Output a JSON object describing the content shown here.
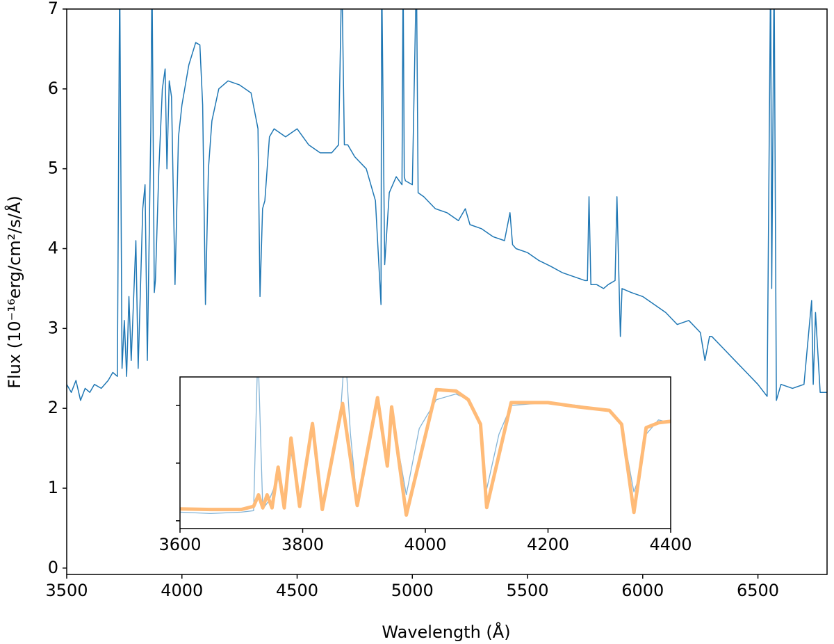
{
  "chart_data": [
    {
      "type": "line",
      "xlabel": "Wavelength (Å)",
      "ylabel": "Flux (10⁻¹⁶erg/cm²/s/Å)",
      "xlim": [
        3500,
        6800
      ],
      "ylim": [
        -0.08,
        7
      ],
      "xticks": [
        3500,
        4000,
        4500,
        5000,
        5500,
        6000,
        6500
      ],
      "yticks": [
        0,
        1,
        2,
        3,
        4,
        5,
        6,
        7
      ],
      "series": [
        {
          "color": "#1f77b4",
          "x": [
            3500,
            3520,
            3540,
            3560,
            3580,
            3600,
            3620,
            3650,
            3680,
            3700,
            3720,
            3730,
            3740,
            3750,
            3760,
            3770,
            3780,
            3800,
            3810,
            3830,
            3840,
            3850,
            3865,
            3870,
            3880,
            3885,
            3900,
            3915,
            3927,
            3935,
            3945,
            3955,
            3970,
            3985,
            4000,
            4030,
            4060,
            4078,
            4090,
            4102,
            4115,
            4130,
            4160,
            4200,
            4250,
            4300,
            4330,
            4339,
            4350,
            4360,
            4380,
            4400,
            4450,
            4500,
            4550,
            4600,
            4650,
            4680,
            4694,
            4705,
            4720,
            4750,
            4800,
            4840,
            4864,
            4867,
            4880,
            4900,
            4930,
            4955,
            4960,
            4965,
            4970,
            5000,
            5018,
            5025,
            5050,
            5100,
            5150,
            5200,
            5230,
            5250,
            5300,
            5350,
            5400,
            5424,
            5435,
            5450,
            5500,
            5550,
            5600,
            5650,
            5700,
            5750,
            5760,
            5767,
            5775,
            5800,
            5830,
            5850,
            5880,
            5888,
            5903,
            5910,
            5950,
            6000,
            6050,
            6100,
            6150,
            6200,
            6250,
            6270,
            6290,
            6300,
            6350,
            6400,
            6450,
            6500,
            6540,
            6555,
            6560,
            6570,
            6580,
            6600,
            6650,
            6700,
            6733,
            6740,
            6750,
            6770,
            6800
          ],
          "values": [
            2.3,
            2.2,
            2.35,
            2.1,
            2.25,
            2.2,
            2.3,
            2.25,
            2.35,
            2.45,
            2.4,
            7.5,
            2.5,
            3.1,
            2.4,
            3.4,
            2.6,
            4.1,
            2.5,
            4.5,
            4.8,
            2.6,
            5.5,
            7.5,
            3.45,
            3.6,
            5.0,
            6.0,
            6.25,
            5.0,
            6.1,
            5.9,
            3.55,
            5.4,
            5.8,
            6.3,
            6.58,
            6.55,
            5.8,
            3.3,
            5.0,
            5.6,
            6.0,
            6.1,
            6.05,
            5.95,
            5.5,
            3.4,
            4.5,
            4.6,
            5.4,
            5.5,
            5.4,
            5.5,
            5.3,
            5.2,
            5.2,
            5.3,
            7.5,
            5.3,
            5.3,
            5.15,
            5.0,
            4.6,
            3.3,
            7.5,
            3.8,
            4.7,
            4.9,
            4.8,
            7.5,
            4.9,
            4.85,
            4.8,
            7.5,
            4.7,
            4.65,
            4.5,
            4.45,
            4.35,
            4.5,
            4.3,
            4.25,
            4.15,
            4.1,
            4.45,
            4.05,
            4.0,
            3.95,
            3.85,
            3.78,
            3.7,
            3.65,
            3.6,
            3.6,
            4.65,
            3.55,
            3.55,
            3.5,
            3.55,
            3.6,
            4.65,
            2.9,
            3.5,
            3.45,
            3.4,
            3.3,
            3.2,
            3.05,
            3.1,
            2.95,
            2.6,
            2.9,
            2.9,
            2.75,
            2.6,
            2.45,
            2.3,
            2.15,
            7.5,
            3.5,
            7.5,
            2.1,
            2.3,
            2.25,
            2.3,
            3.35,
            2.3,
            3.2,
            2.2,
            2.2
          ]
        }
      ]
    },
    {
      "type": "line",
      "xlim": [
        3600,
        4400
      ],
      "ylim": [
        1.73,
        6.99
      ],
      "xticks": [
        3600,
        3800,
        4000,
        4200,
        4400
      ],
      "yticks": [
        2,
        4,
        6
      ],
      "ytick_labels": false,
      "series": [
        {
          "color": "#1f77b4",
          "opacity": 0.55,
          "width": 1.3,
          "x": [
            3600,
            3650,
            3700,
            3720,
            3727,
            3735,
            3745,
            3760,
            3770,
            3781,
            3795,
            3816,
            3832,
            3862,
            3869,
            3878,
            3889,
            3922,
            3938,
            3945,
            3969,
            3990,
            4018,
            4050,
            4070,
            4090,
            4100,
            4120,
            4140,
            4200,
            4250,
            4300,
            4320,
            4340,
            4350,
            4360,
            4380,
            4400
          ],
          "values": [
            2.3,
            2.25,
            2.3,
            2.35,
            8,
            2.4,
            2.7,
            3.5,
            2.4,
            4.4,
            2.6,
            5.1,
            2.6,
            5.8,
            8,
            5.0,
            2.6,
            6.2,
            4.2,
            5.8,
            2.9,
            5.2,
            6.2,
            6.4,
            6.2,
            5.3,
            3.1,
            5.0,
            6.0,
            6.1,
            6.0,
            5.8,
            5.3,
            3.0,
            3.6,
            5.0,
            5.5,
            5.4
          ]
        },
        {
          "color": "#ffbb78",
          "opacity": 1,
          "width": 5,
          "x": [
            3600,
            3650,
            3700,
            3720,
            3728,
            3735,
            3742,
            3750,
            3760,
            3770,
            3781,
            3795,
            3816,
            3832,
            3865,
            3889,
            3922,
            3938,
            3945,
            3969,
            4018,
            4050,
            4070,
            4090,
            4100,
            4140,
            4200,
            4250,
            4300,
            4320,
            4340,
            4360,
            4380,
            4400
          ],
          "values": [
            2.41,
            2.39,
            2.39,
            2.5,
            2.9,
            2.45,
            2.9,
            2.45,
            3.86,
            2.45,
            4.87,
            2.5,
            5.37,
            2.39,
            6.07,
            2.53,
            6.27,
            3.9,
            5.95,
            2.2,
            6.55,
            6.5,
            6.2,
            5.35,
            2.46,
            6.1,
            6.1,
            5.95,
            5.83,
            5.35,
            2.29,
            5.23,
            5.4,
            5.45
          ]
        }
      ]
    }
  ]
}
